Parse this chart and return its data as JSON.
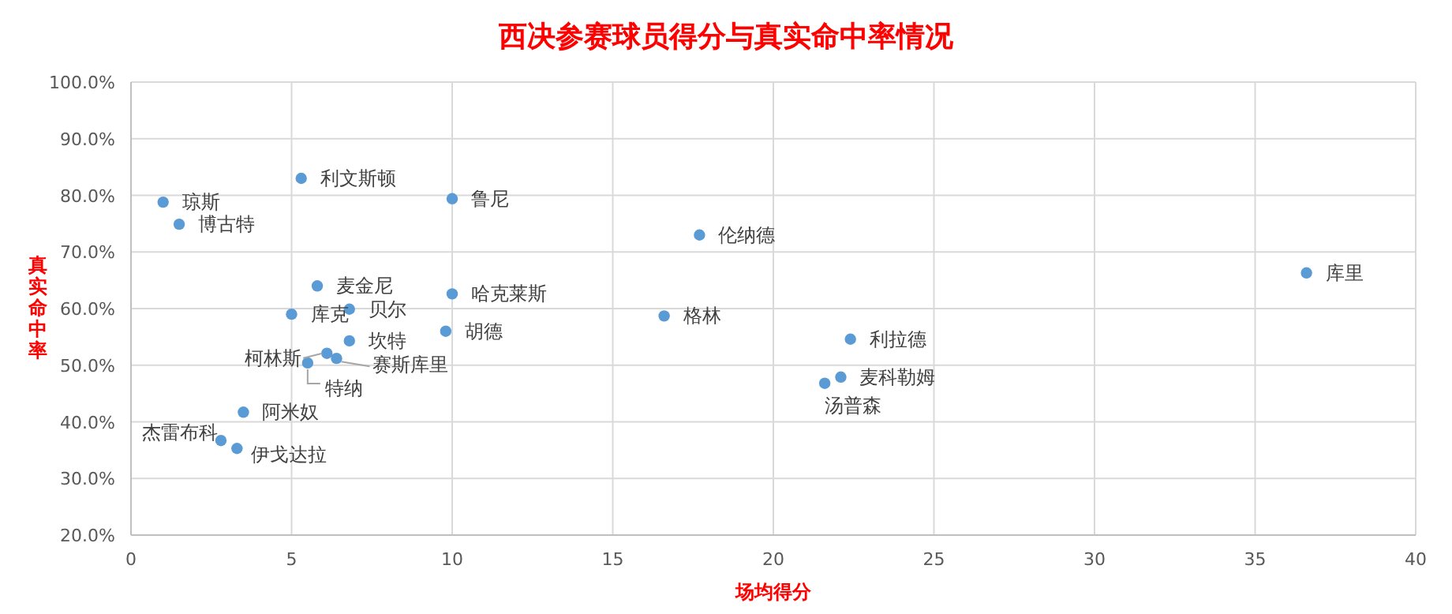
{
  "chart_data": {
    "type": "scatter",
    "title": "西决参赛球员得分与真实命中率情况",
    "xlabel": "场均得分",
    "ylabel": "真实命中率",
    "xlim": [
      0,
      40
    ],
    "xticks": [
      0,
      5,
      10,
      15,
      20,
      25,
      30,
      35,
      40
    ],
    "ylim": [
      20,
      100
    ],
    "yticks": [
      {
        "value": 20,
        "label": "20.0%"
      },
      {
        "value": 30,
        "label": "30.0%"
      },
      {
        "value": 40,
        "label": "40.0%"
      },
      {
        "value": 50,
        "label": "50.0%"
      },
      {
        "value": 60,
        "label": "60.0%"
      },
      {
        "value": 70,
        "label": "70.0%"
      },
      {
        "value": 80,
        "label": "80.0%"
      },
      {
        "value": 90,
        "label": "90.0%"
      },
      {
        "value": 100,
        "label": "100.0%"
      }
    ],
    "grid": true,
    "marker": "circle",
    "series": [
      {
        "color": "#5b9bd5",
        "x": [
          1.0,
          1.5,
          5.3,
          10.0,
          17.7,
          36.6,
          5.8,
          10.0,
          5.0,
          6.8,
          16.6,
          9.8,
          6.8,
          6.1,
          6.4,
          5.5,
          3.5,
          2.8,
          3.3,
          22.4,
          22.1,
          21.6
        ],
        "values": [
          78.8,
          74.9,
          83.0,
          79.4,
          73.0,
          66.3,
          64.0,
          62.6,
          59.0,
          59.9,
          58.7,
          56.0,
          54.3,
          52.1,
          51.2,
          50.4,
          41.7,
          36.7,
          35.3,
          54.6,
          47.9,
          46.8
        ]
      }
    ],
    "annotations": [
      {
        "text": "琼斯",
        "x": 1.0,
        "y": 78.8
      },
      {
        "text": "博古特",
        "x": 1.5,
        "y": 74.9
      },
      {
        "text": "利文斯顿",
        "x": 5.3,
        "y": 83.0
      },
      {
        "text": "鲁尼",
        "x": 10.0,
        "y": 79.4
      },
      {
        "text": "伦纳德",
        "x": 17.7,
        "y": 73.0
      },
      {
        "text": "库里",
        "x": 36.6,
        "y": 66.3
      },
      {
        "text": "麦金尼",
        "x": 5.8,
        "y": 64.0
      },
      {
        "text": "哈克莱斯",
        "x": 10.0,
        "y": 62.6
      },
      {
        "text": "库克",
        "x": 5.0,
        "y": 59.0
      },
      {
        "text": "贝尔",
        "x": 6.8,
        "y": 59.9
      },
      {
        "text": "格林",
        "x": 16.6,
        "y": 58.7
      },
      {
        "text": "胡德",
        "x": 9.8,
        "y": 56.0
      },
      {
        "text": "坎特",
        "x": 6.8,
        "y": 54.3
      },
      {
        "text": "柯林斯",
        "x": 6.1,
        "y": 52.1
      },
      {
        "text": "赛斯库里",
        "x": 6.4,
        "y": 51.2
      },
      {
        "text": "特纳",
        "x": 5.5,
        "y": 50.4
      },
      {
        "text": "阿米奴",
        "x": 3.5,
        "y": 41.7
      },
      {
        "text": "杰雷布科",
        "x": 2.8,
        "y": 36.7
      },
      {
        "text": "伊戈达拉",
        "x": 3.3,
        "y": 35.3
      },
      {
        "text": "利拉德",
        "x": 22.4,
        "y": 54.6
      },
      {
        "text": "麦科勒姆",
        "x": 22.1,
        "y": 47.9
      },
      {
        "text": "汤普森",
        "x": 21.6,
        "y": 46.8
      }
    ]
  }
}
